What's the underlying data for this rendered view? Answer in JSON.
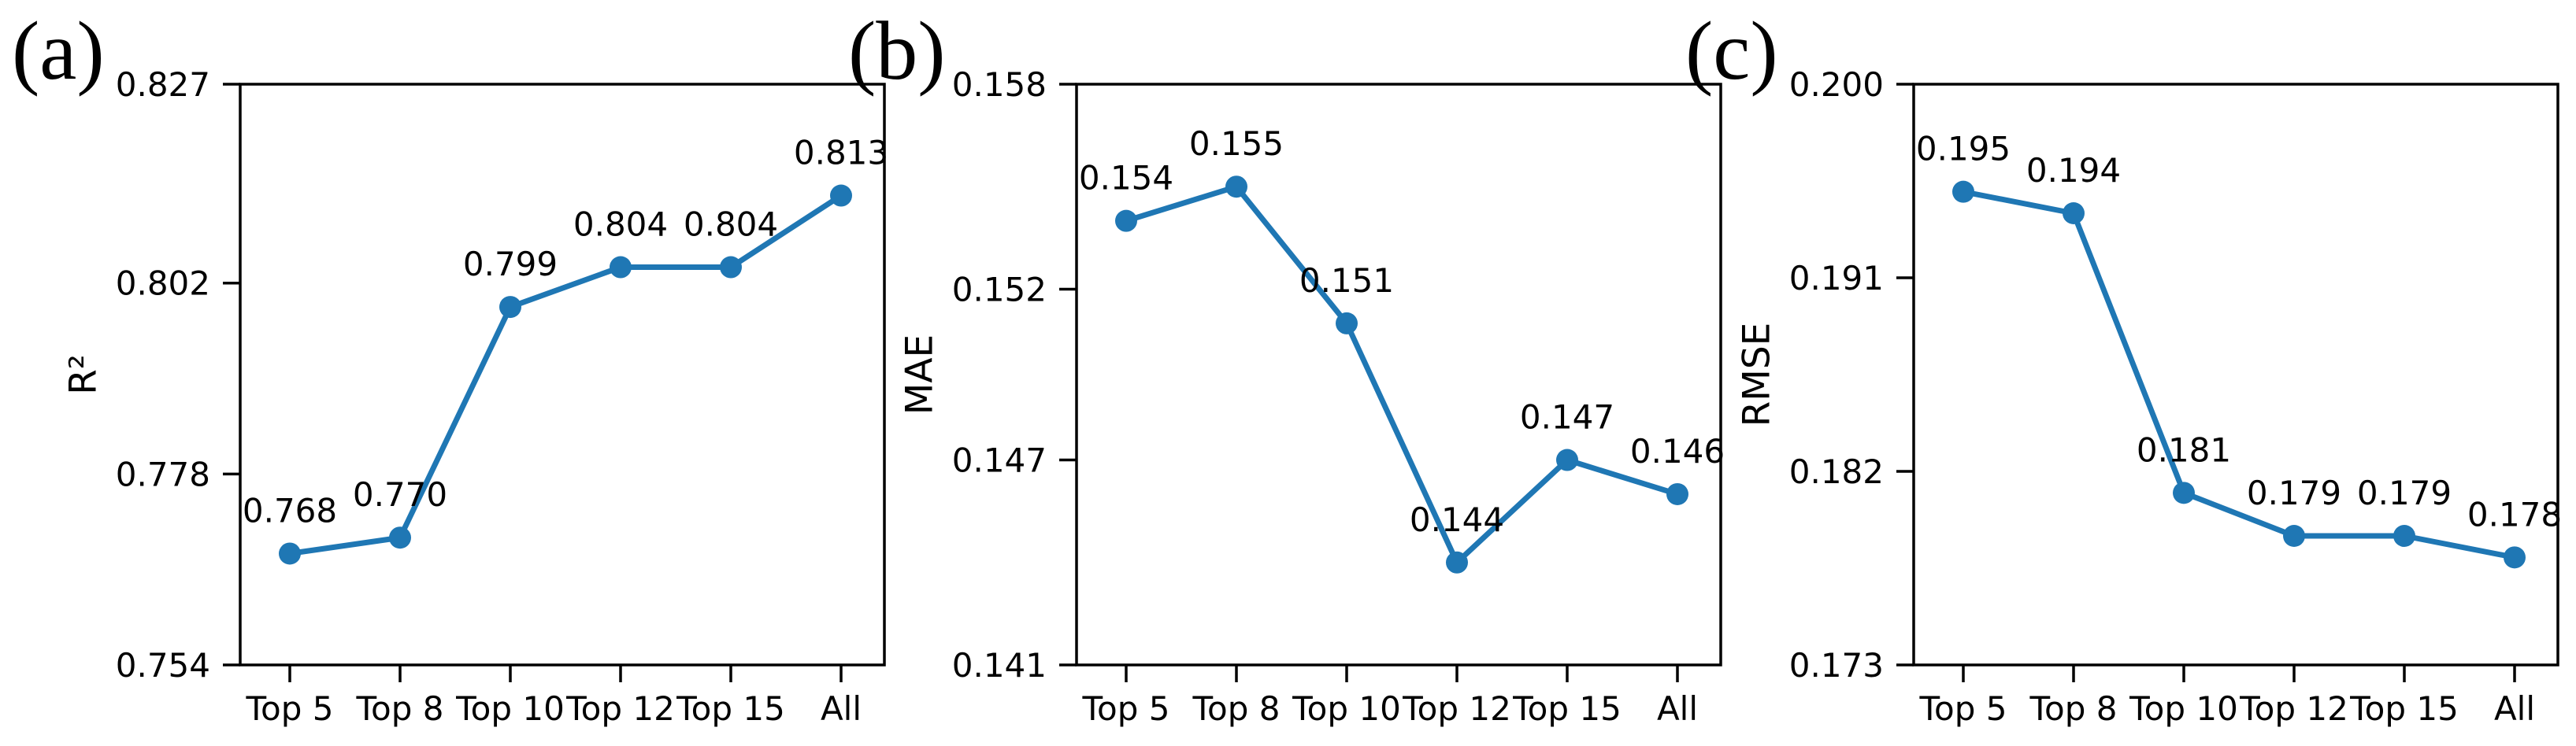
{
  "figure": {
    "background_color": "#ffffff",
    "line_color": "#1f77b4",
    "spine_color": "#000000",
    "text_color": "#000000"
  },
  "chart_data": [
    {
      "type": "line",
      "panel_label": "(a)",
      "ylabel": "R²",
      "xlabel": "",
      "title": "",
      "categories": [
        "Top 5",
        "Top 8",
        "Top 10",
        "Top 12",
        "Top 15",
        "All"
      ],
      "values": [
        0.768,
        0.77,
        0.799,
        0.804,
        0.804,
        0.813
      ],
      "point_labels": [
        "0.768",
        "0.770",
        "0.799",
        "0.804",
        "0.804",
        "0.813"
      ],
      "yticks": [
        0.754,
        0.778,
        0.802,
        0.827
      ],
      "ytick_labels": [
        "0.754",
        "0.778",
        "0.802",
        "0.827"
      ],
      "ylim": [
        0.754,
        0.827
      ],
      "grid": false,
      "legend": "none",
      "marker": "circle"
    },
    {
      "type": "line",
      "panel_label": "(b)",
      "ylabel": "MAE",
      "xlabel": "",
      "title": "",
      "categories": [
        "Top 5",
        "Top 8",
        "Top 10",
        "Top 12",
        "Top 15",
        "All"
      ],
      "values": [
        0.154,
        0.155,
        0.151,
        0.144,
        0.147,
        0.146
      ],
      "point_labels": [
        "0.154",
        "0.155",
        "0.151",
        "0.144",
        "0.147",
        "0.146"
      ],
      "yticks": [
        0.141,
        0.147,
        0.152,
        0.158
      ],
      "ytick_labels": [
        "0.141",
        "0.147",
        "0.152",
        "0.158"
      ],
      "ylim": [
        0.141,
        0.158
      ],
      "grid": false,
      "legend": "none",
      "marker": "circle"
    },
    {
      "type": "line",
      "panel_label": "(c)",
      "ylabel": "RMSE",
      "xlabel": "",
      "title": "",
      "categories": [
        "Top 5",
        "Top 8",
        "Top 10",
        "Top 12",
        "Top 15",
        "All"
      ],
      "values": [
        0.195,
        0.194,
        0.181,
        0.179,
        0.179,
        0.178
      ],
      "point_labels": [
        "0.195",
        "0.194",
        "0.181",
        "0.179",
        "0.179",
        "0.178"
      ],
      "yticks": [
        0.173,
        0.182,
        0.191,
        0.2
      ],
      "ytick_labels": [
        "0.173",
        "0.182",
        "0.191",
        "0.200"
      ],
      "ylim": [
        0.173,
        0.2
      ],
      "grid": false,
      "legend": "none",
      "marker": "circle"
    }
  ]
}
